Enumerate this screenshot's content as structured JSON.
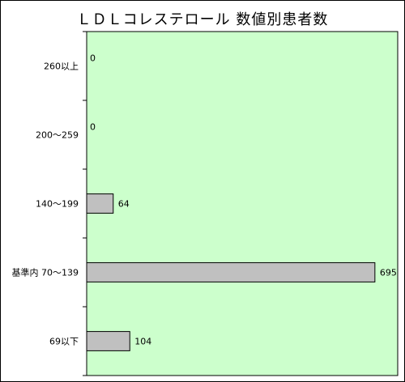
{
  "chart_data": {
    "type": "bar",
    "orientation": "horizontal",
    "title": "ＬＤＬコレステロール 数値別患者数",
    "categories": [
      "260以上",
      "200～259",
      "140～199",
      "基準内 70～139",
      "69以下"
    ],
    "values": [
      0,
      0,
      64,
      695,
      104
    ],
    "xlim": [
      0,
      750
    ],
    "grid": false,
    "colors": {
      "plot_background": "#ccffcc",
      "bar_fill": "#c0c0c0",
      "bar_stroke": "#000000"
    }
  }
}
